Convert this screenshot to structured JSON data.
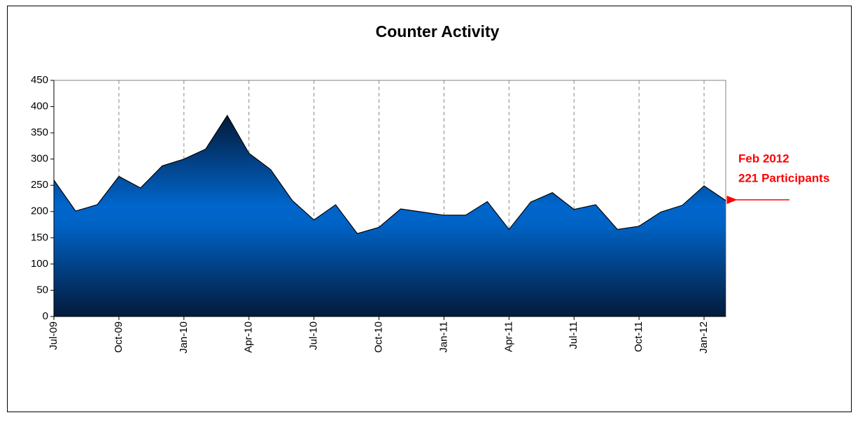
{
  "chart_data": {
    "type": "area",
    "title": "Counter Activity",
    "categories": [
      "Jul-09",
      null,
      null,
      "Oct-09",
      null,
      null,
      "Jan-10",
      null,
      null,
      "Apr-10",
      null,
      null,
      "Jul-10",
      null,
      null,
      "Oct-10",
      null,
      null,
      "Jan-11",
      null,
      null,
      "Apr-11",
      null,
      null,
      "Jul-11",
      null,
      null,
      "Oct-11",
      null,
      null,
      "Jan-12",
      null
    ],
    "values": [
      260,
      201,
      213,
      267,
      245,
      287,
      300,
      319,
      383,
      311,
      280,
      221,
      184,
      213,
      158,
      170,
      205,
      199,
      193,
      193,
      219,
      166,
      218,
      236,
      204,
      213,
      166,
      172,
      199,
      212,
      249,
      221
    ],
    "color": "#0066cc",
    "ylim": [
      0,
      450
    ],
    "yticks": [
      0,
      50,
      100,
      150,
      200,
      250,
      300,
      350,
      400,
      450
    ],
    "xgrid": true,
    "annotations": [
      "Feb 2012",
      "221 Participants"
    ],
    "annotation_color": "#ff0000"
  }
}
